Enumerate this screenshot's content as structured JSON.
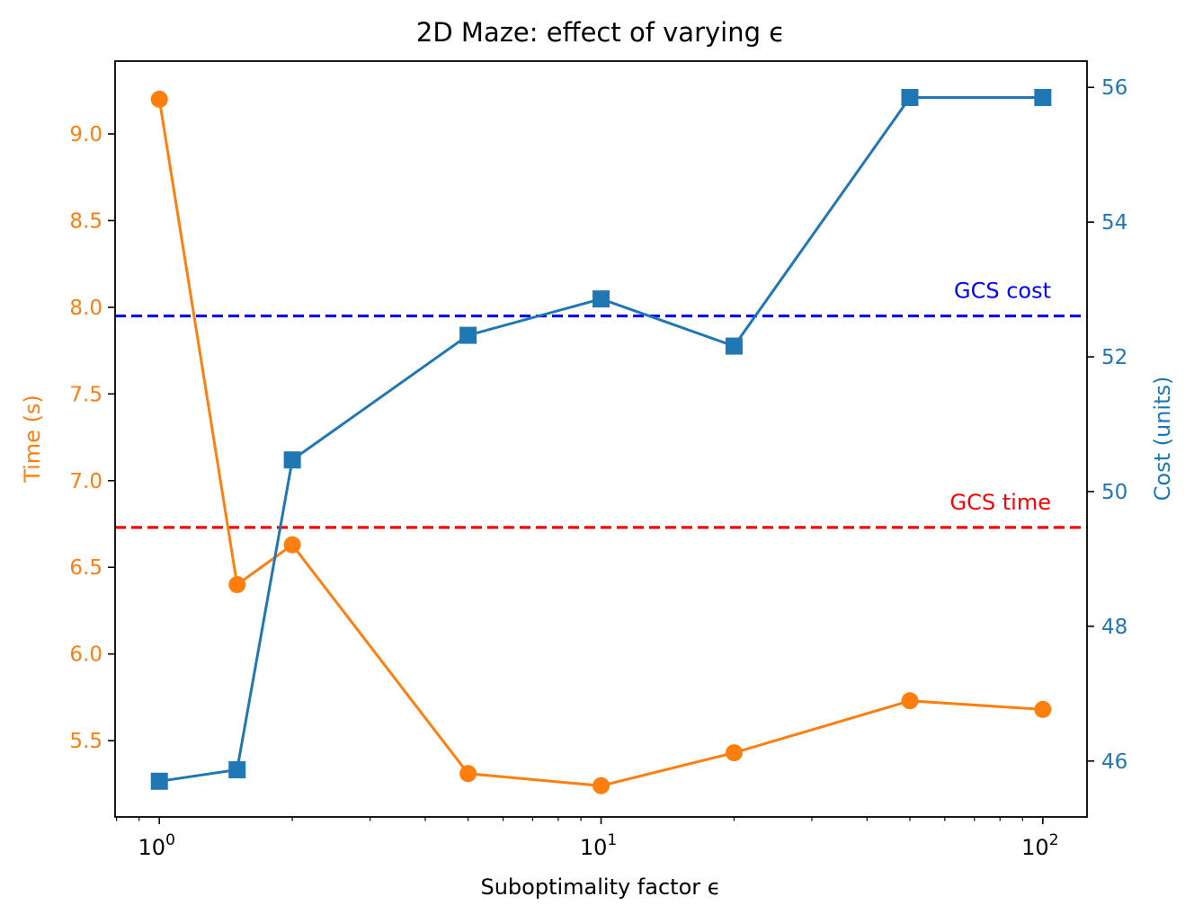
{
  "chart_data": {
    "type": "line",
    "title": "2D Maze: effect of varying ϵ",
    "xlabel": "Suboptimality factor ϵ",
    "ylabel_left": "Time (s)",
    "ylabel_right": "Cost (units)",
    "x_scale": "log",
    "xlim": [
      0.794,
      125.9
    ],
    "x_ticks": [
      {
        "value": 1,
        "base": "10",
        "exp": "0"
      },
      {
        "value": 10,
        "base": "10",
        "exp": "1"
      },
      {
        "value": 100,
        "base": "10",
        "exp": "2"
      }
    ],
    "ylim_left": [
      5.06,
      9.42
    ],
    "yticks_left": [
      "5.5",
      "6.0",
      "6.5",
      "7.0",
      "7.5",
      "8.0",
      "8.5",
      "9.0"
    ],
    "ylim_right": [
      45.17,
      56.39
    ],
    "yticks_right": [
      "46",
      "48",
      "50",
      "52",
      "54",
      "56"
    ],
    "x": [
      1,
      1.5,
      2,
      5,
      10,
      20,
      50,
      100
    ],
    "series": [
      {
        "name": "Time",
        "axis": "left",
        "marker": "circle",
        "color": "#ff7f0e",
        "values": [
          9.2,
          6.4,
          6.63,
          5.31,
          5.24,
          5.43,
          5.73,
          5.68
        ]
      },
      {
        "name": "Cost",
        "axis": "right",
        "marker": "square",
        "color": "#1f77b4",
        "values": [
          45.7,
          45.87,
          50.47,
          52.32,
          52.86,
          52.16,
          55.85,
          55.85
        ]
      }
    ],
    "reference_lines": [
      {
        "label": "GCS cost",
        "axis": "left",
        "value": 7.95,
        "color": "#0000ff"
      },
      {
        "label": "GCS time",
        "axis": "left",
        "value": 6.73,
        "color": "#ff0000"
      }
    ],
    "left_axis_color": "#ff7f0e",
    "right_axis_color": "#1f77b4"
  }
}
